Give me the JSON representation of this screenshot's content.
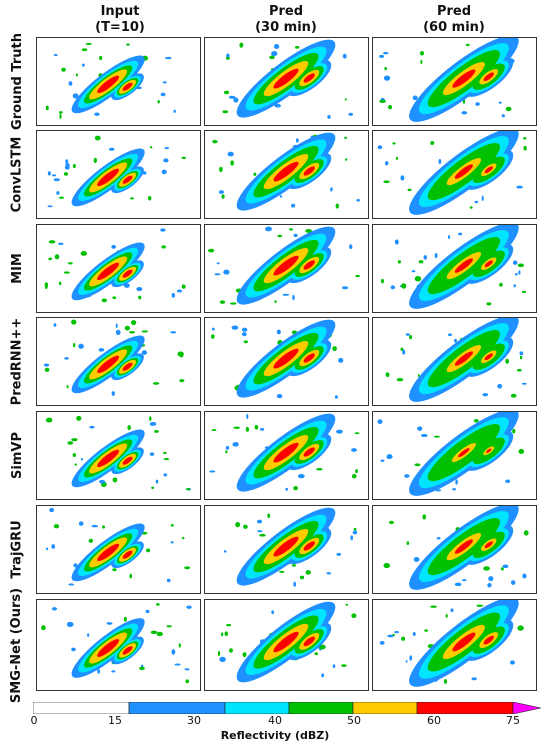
{
  "columns": [
    {
      "line1": "Input",
      "line2": "(T=10)"
    },
    {
      "line1": "Pred",
      "line2": "(30 min)"
    },
    {
      "line1": "Pred",
      "line2": "(60 min)"
    }
  ],
  "rows": [
    "Ground Truth",
    "ConvLSTM",
    "MIM",
    "PredRNN++",
    "SimVP",
    "TrajGRU",
    "SMG-Net (Ours)"
  ],
  "colorbar": {
    "label": "Reflectivity (dBZ)",
    "ticks": [
      "0",
      "15",
      "30",
      "40",
      "50",
      "60",
      "75"
    ],
    "segments": [
      {
        "from": 0,
        "to": 15,
        "color": "#ffffff"
      },
      {
        "from": 15,
        "to": 30,
        "color": "#1e90ff"
      },
      {
        "from": 30,
        "to": 40,
        "color": "#00e5ff"
      },
      {
        "from": 40,
        "to": 50,
        "color": "#00c000"
      },
      {
        "from": 50,
        "to": 60,
        "color": "#ffcc00"
      },
      {
        "from": 60,
        "to": 75,
        "color": "#ff0000"
      }
    ],
    "extend_color": "#ff00ff"
  }
}
